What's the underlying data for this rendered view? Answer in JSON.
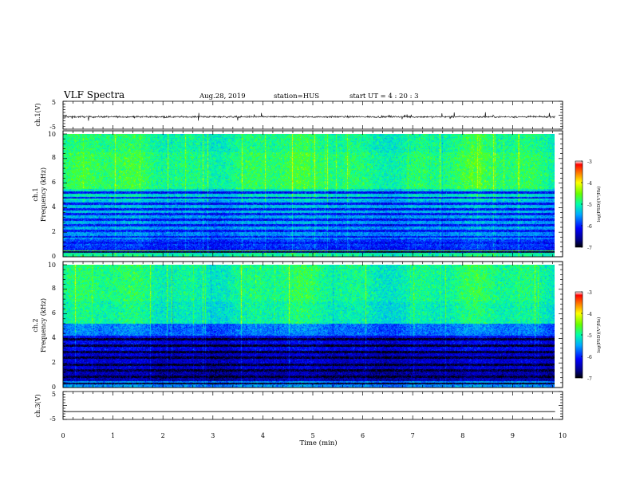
{
  "header": {
    "title": "VLF Spectra",
    "date": "Aug.28, 2019",
    "station": "station=HUS",
    "start": "start  UT =   4 : 20 : 3"
  },
  "chart_data": [
    {
      "type": "line",
      "panel": "ch1-waveform",
      "ylabel": "ch.1(V)",
      "ylim": [
        -5,
        5
      ],
      "yticks": [
        "5",
        "-5"
      ],
      "xlim": [
        0,
        10
      ],
      "series": [
        {
          "baseline": 0,
          "noise_amplitude": 0.3
        }
      ]
    },
    {
      "type": "heatmap",
      "panel": "ch1-spectrogram",
      "ylabel": "Frequency (kHz)",
      "channel_label": "ch.1",
      "ylim": [
        0,
        10
      ],
      "yticks": [
        "0",
        "2",
        "4",
        "6",
        "8",
        "10"
      ],
      "xlim": [
        0,
        9.85
      ],
      "colorbar": {
        "label": "log(PSD)(V²/Hz)",
        "range": [
          -7,
          -3
        ],
        "ticks": [
          "-3",
          "-4",
          "-5",
          "-6",
          "-7"
        ]
      },
      "bands": [
        {
          "f0": 0.0,
          "f1": 0.3,
          "level": -5.0
        },
        {
          "f0": 0.3,
          "f1": 0.45,
          "level": -6.8
        },
        {
          "f0": 0.45,
          "f1": 0.6,
          "level": -4.6
        },
        {
          "f0": 0.6,
          "f1": 0.9,
          "level": -6.0
        },
        {
          "f0": 0.9,
          "f1": 1.4,
          "level": -5.9
        },
        {
          "f0": 1.4,
          "f1": 2.0,
          "level": -5.6
        },
        {
          "f0": 2.0,
          "f1": 3.4,
          "level": -5.5
        },
        {
          "f0": 3.4,
          "f1": 4.6,
          "level": -5.4
        },
        {
          "f0": 4.6,
          "f1": 5.5,
          "level": -5.2
        },
        {
          "f0": 5.5,
          "f1": 8.5,
          "level": -4.85
        },
        {
          "f0": 8.5,
          "f1": 10.0,
          "level": -4.95
        }
      ],
      "stripes": [
        0.55,
        1.1,
        1.6,
        2.1,
        2.55,
        3.0,
        3.45,
        3.85,
        4.3,
        4.8,
        5.25
      ],
      "stripe_level": -6.1
    },
    {
      "type": "heatmap",
      "panel": "ch2-spectrogram",
      "ylabel": "Frequency (kHz)",
      "channel_label": "ch.2",
      "ylim": [
        0,
        10
      ],
      "yticks": [
        "0",
        "2",
        "4",
        "6",
        "8",
        "10"
      ],
      "xlim": [
        0,
        9.85
      ],
      "colorbar": {
        "label": "log(PSD)(V²/Hz)",
        "range": [
          -7,
          -3
        ],
        "ticks": [
          "-3",
          "-4",
          "-5",
          "-6",
          "-7"
        ]
      },
      "bands": [
        {
          "f0": 0.0,
          "f1": 0.5,
          "level": -5.6
        },
        {
          "f0": 0.5,
          "f1": 1.5,
          "level": -6.5
        },
        {
          "f0": 1.5,
          "f1": 3.0,
          "level": -6.35
        },
        {
          "f0": 3.0,
          "f1": 4.2,
          "level": -6.2
        },
        {
          "f0": 4.2,
          "f1": 5.2,
          "level": -5.7
        },
        {
          "f0": 5.2,
          "f1": 7.0,
          "level": -5.05
        },
        {
          "f0": 7.0,
          "f1": 10.0,
          "level": -4.95
        }
      ],
      "stripes": [
        0.3,
        0.85,
        1.35,
        1.85,
        2.4,
        2.9,
        3.4,
        3.9
      ],
      "stripe_level": -6.9
    },
    {
      "type": "line",
      "panel": "ch3-waveform",
      "ylabel": "ch.3(V)",
      "ylim": [
        -5,
        5
      ],
      "yticks": [
        "5",
        "-5"
      ],
      "xlim": [
        0,
        10
      ],
      "series": [
        {
          "baseline": -2.2,
          "noise_amplitude": 0
        }
      ]
    }
  ],
  "xaxis": {
    "label": "Time (min)",
    "ticks": [
      "0",
      "1",
      "2",
      "3",
      "4",
      "5",
      "6",
      "7",
      "8",
      "9",
      "10"
    ],
    "range": [
      0,
      10
    ]
  }
}
